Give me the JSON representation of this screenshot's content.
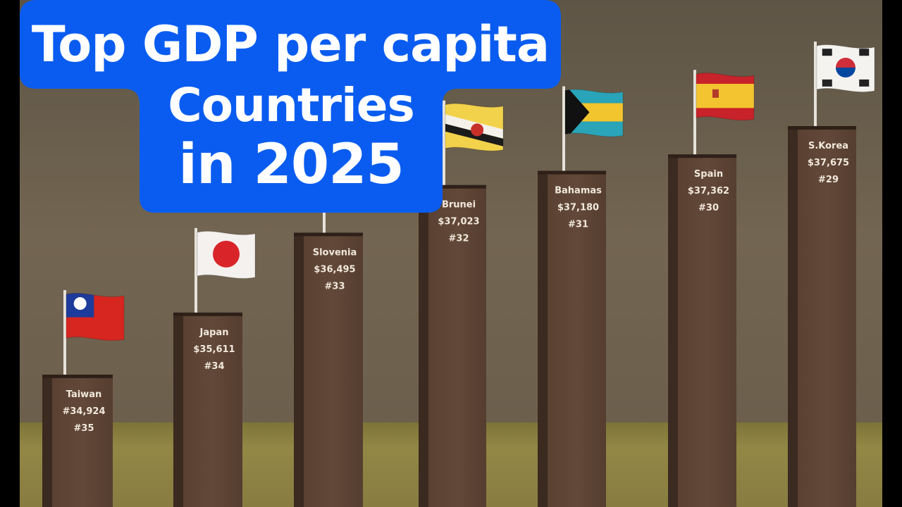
{
  "title": {
    "line1": "Top GDP per capita",
    "line2": "Countries",
    "line3": "in 2025"
  },
  "colors": {
    "wall": "#6e6150",
    "ground": "#8a7f3e",
    "bar_front": "#5d4434",
    "bar_side": "#3d2b20",
    "title_bg": "#0a5cf0"
  },
  "chart_data": {
    "type": "bar",
    "title": "Top GDP per capita Countries in 2025",
    "categories": [
      "Taiwan",
      "Japan",
      "Slovenia",
      "Brunei",
      "Bahamas",
      "Spain",
      "S.Korea"
    ],
    "series": [
      {
        "values": [
          34924,
          35611,
          36495,
          37023,
          37180,
          37362,
          37675
        ]
      }
    ],
    "value_labels": [
      "#34,924",
      "$35,611",
      "$36,495",
      "$37,023",
      "$37,180",
      "$37,362",
      "$37,675"
    ],
    "ranks": [
      "#35",
      "#34",
      "#33",
      "#32",
      "#31",
      "#30",
      "#29"
    ],
    "flags": [
      "taiwan-flag-icon",
      "japan-flag-icon",
      "slovenia-flag-icon",
      "brunei-flag-icon",
      "bahamas-flag-icon",
      "spain-flag-icon",
      "south-korea-flag-icon"
    ]
  }
}
